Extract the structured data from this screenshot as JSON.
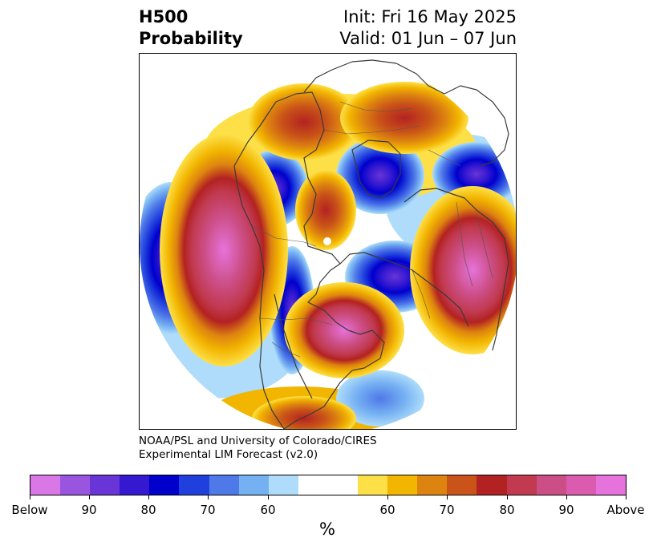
{
  "title": {
    "left_line1": "H500",
    "left_line2": "Probability",
    "right_line1": "Init: Fri 16 May 2025",
    "right_line2": "Valid: 01 Jun – 07 Jun"
  },
  "credit": {
    "line1": "NOAA/PSL and University of Colorado/CIRES",
    "line2": "Experimental LIM Forecast (v2.0)"
  },
  "colorbar": {
    "colors": [
      "#d977e6",
      "#9a55e0",
      "#6a35d6",
      "#3519d1",
      "#0000cc",
      "#2040dd",
      "#4f78e8",
      "#75b0f2",
      "#aedcfa",
      "#ffffff",
      "#ffffff",
      "#fde048",
      "#f2b500",
      "#dd8410",
      "#c95318",
      "#b32222",
      "#c13a50",
      "#cc4e86",
      "#db5cae",
      "#e673db"
    ],
    "tick_labels": [
      "Below",
      "90",
      "80",
      "70",
      "60",
      "60",
      "70",
      "80",
      "90",
      "Above"
    ],
    "unit": "%"
  },
  "palette": {
    "below_strong": "#6a35d6",
    "below_mid": "#0000cc",
    "below_weak": "#aedcfa",
    "above_weak": "#fde048",
    "above_mid": "#b32222",
    "above_strong": "#e673db"
  }
}
